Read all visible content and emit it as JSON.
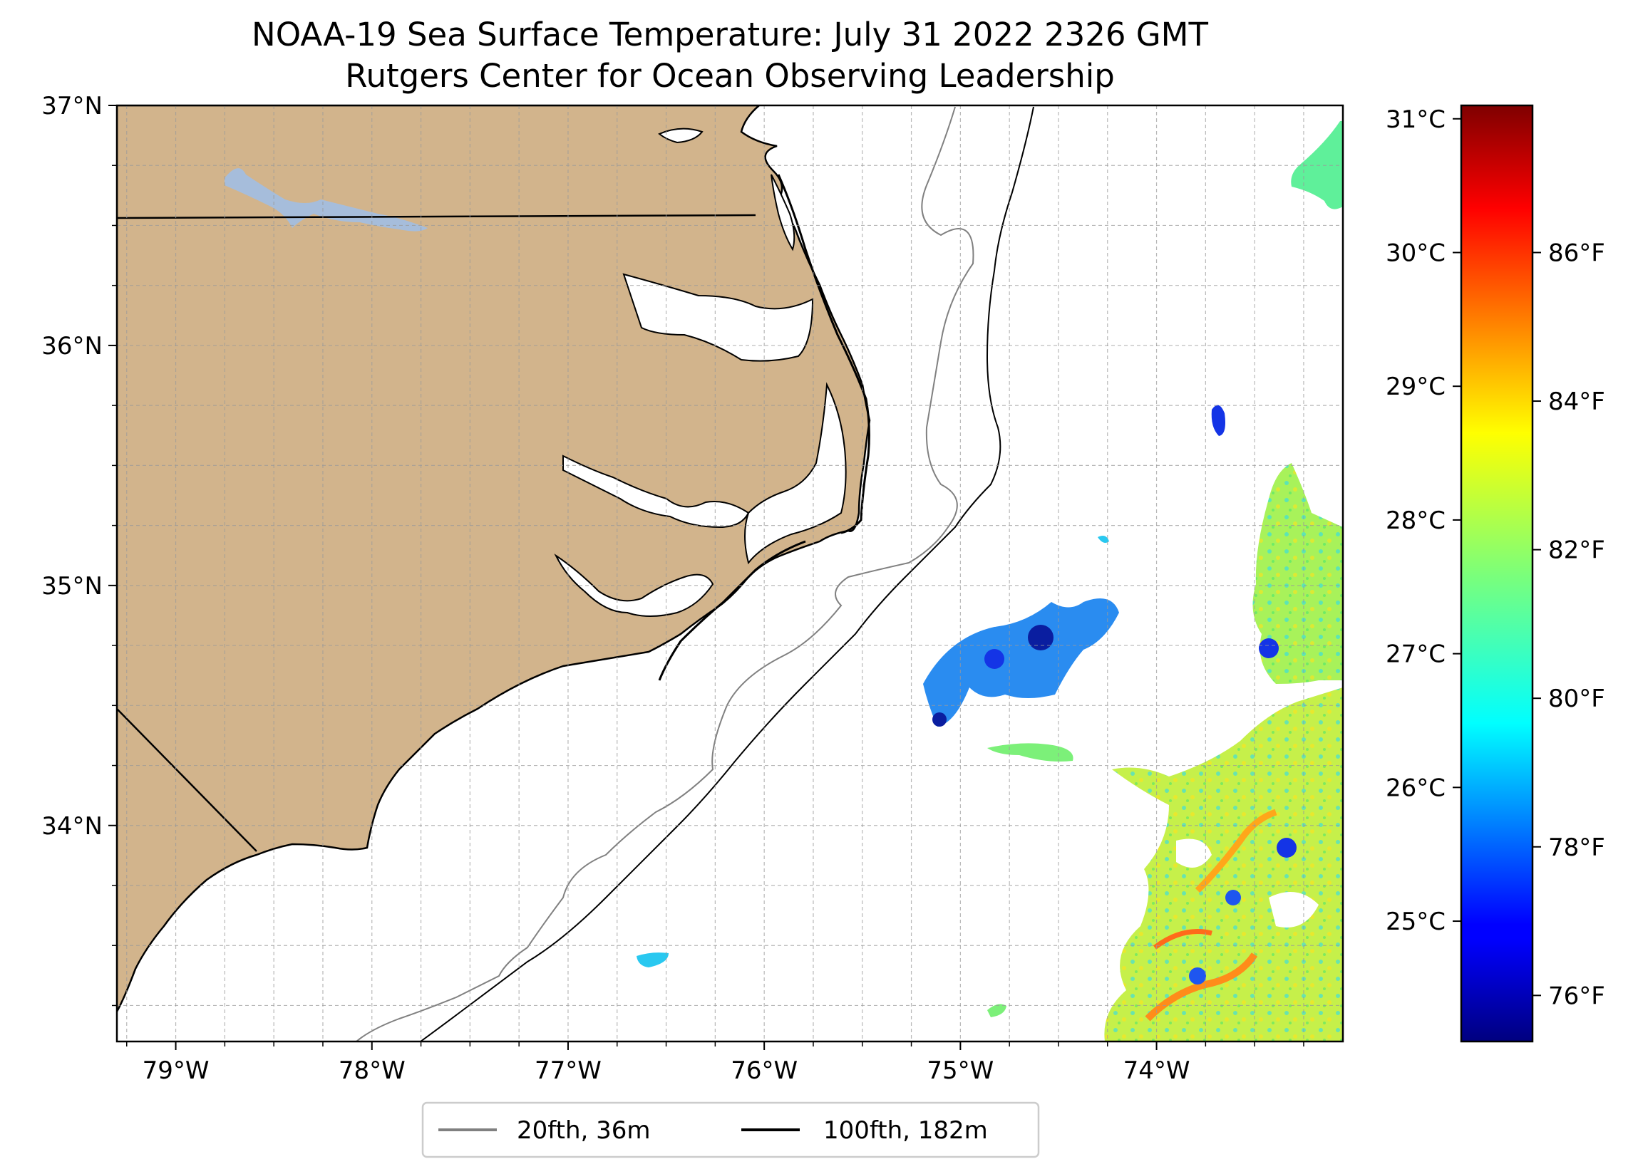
{
  "title": "NOAA-19 Sea Surface Temperature: July 31 2022 2326 GMT",
  "subtitle": "Rutgers Center for Ocean Observing Leadership",
  "map": {
    "lon_range": [
      -79.3,
      -73.05
    ],
    "lat_range": [
      33.1,
      37.0
    ],
    "lon_ticks": [
      {
        "value": -79,
        "label": "79°W"
      },
      {
        "value": -78,
        "label": "78°W"
      },
      {
        "value": -77,
        "label": "77°W"
      },
      {
        "value": -76,
        "label": "76°W"
      },
      {
        "value": -75,
        "label": "75°W"
      },
      {
        "value": -74,
        "label": "74°W"
      }
    ],
    "lat_ticks": [
      {
        "value": 37,
        "label": "37°N"
      },
      {
        "value": 36,
        "label": "36°N"
      },
      {
        "value": 35,
        "label": "35°N"
      },
      {
        "value": 34,
        "label": "34°N"
      }
    ],
    "gridlines": true,
    "land_color": "#d2b48c",
    "lake_color": "#a6bddb",
    "isobath_20_color": "#808080",
    "isobath_100_color": "#000000"
  },
  "colorbar": {
    "colormap": "jet",
    "celsius_range": [
      24.1,
      31.1
    ],
    "celsius_ticks": [
      {
        "value": 25,
        "label": "25°C"
      },
      {
        "value": 26,
        "label": "26°C"
      },
      {
        "value": 27,
        "label": "27°C"
      },
      {
        "value": 28,
        "label": "28°C"
      },
      {
        "value": 29,
        "label": "29°C"
      },
      {
        "value": 30,
        "label": "30°C"
      },
      {
        "value": 31,
        "label": "31°C"
      }
    ],
    "fahrenheit_ticks": [
      {
        "value": 76,
        "label": "76°F"
      },
      {
        "value": 78,
        "label": "78°F"
      },
      {
        "value": 80,
        "label": "80°F"
      },
      {
        "value": 82,
        "label": "82°F"
      },
      {
        "value": 84,
        "label": "84°F"
      },
      {
        "value": 86,
        "label": "86°F"
      }
    ]
  },
  "legend": {
    "position": "bottom-center",
    "items": [
      {
        "label": "20fth, 36m",
        "color": "#808080"
      },
      {
        "label": "100fth, 182m",
        "color": "#000000"
      }
    ]
  }
}
